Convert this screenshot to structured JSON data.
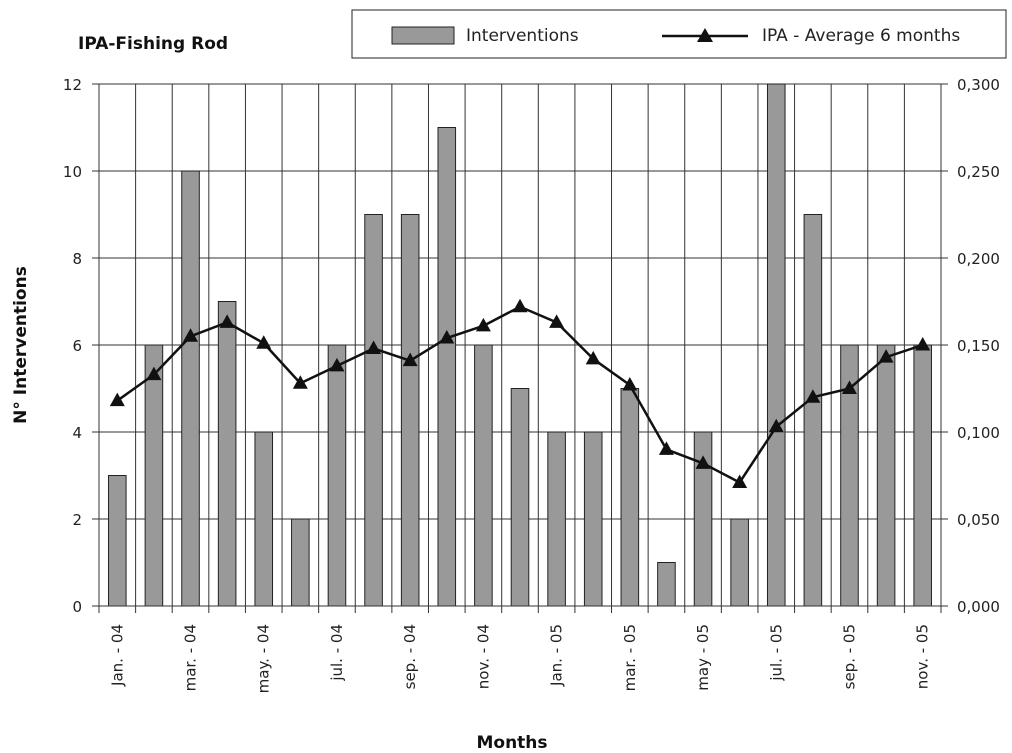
{
  "chart_data": {
    "type": "bar",
    "title": "IPA-Fishing Rod",
    "xlabel": "Months",
    "ylabel": "N° Interventions",
    "ylim": [
      0,
      12
    ],
    "y_ticks": [
      "0",
      "2",
      "4",
      "6",
      "8",
      "10",
      "12"
    ],
    "y2lim": [
      0,
      0.3
    ],
    "y2_ticks": [
      "0,000",
      "0,050",
      "0,100",
      "0,150",
      "0,200",
      "0,250",
      "0,300"
    ],
    "categories": [
      "Jan. - 04",
      "",
      "mar. - 04",
      "",
      "may. - 04",
      "",
      "jul. - 04",
      "",
      "sep. - 04",
      "",
      "nov. - 04",
      "",
      "Jan. - 05",
      "",
      "mar. - 05",
      "",
      "may - 05",
      "",
      "jul. - 05",
      "",
      "sep. - 05",
      "",
      "nov. - 05"
    ],
    "series": [
      {
        "name": "Interventions",
        "type": "bar",
        "axis": "left",
        "color": "#999999",
        "values": [
          3,
          6,
          10,
          7,
          4,
          2,
          6,
          9,
          9,
          11,
          6,
          5,
          4,
          4,
          5,
          1,
          4,
          2,
          12,
          9,
          6,
          6,
          6
        ]
      },
      {
        "name": "IPA - Average 6 months",
        "type": "line",
        "axis": "right",
        "color": "#111111",
        "marker": "triangle",
        "values": [
          0.118,
          0.133,
          0.155,
          0.163,
          0.151,
          0.128,
          0.138,
          0.148,
          0.141,
          0.154,
          0.161,
          0.172,
          0.163,
          0.142,
          0.127,
          0.09,
          0.082,
          0.071,
          0.103,
          0.12,
          0.125,
          0.143,
          0.15
        ]
      }
    ],
    "legend_position": "top-right",
    "grid": "vertical and horizontal lines"
  }
}
